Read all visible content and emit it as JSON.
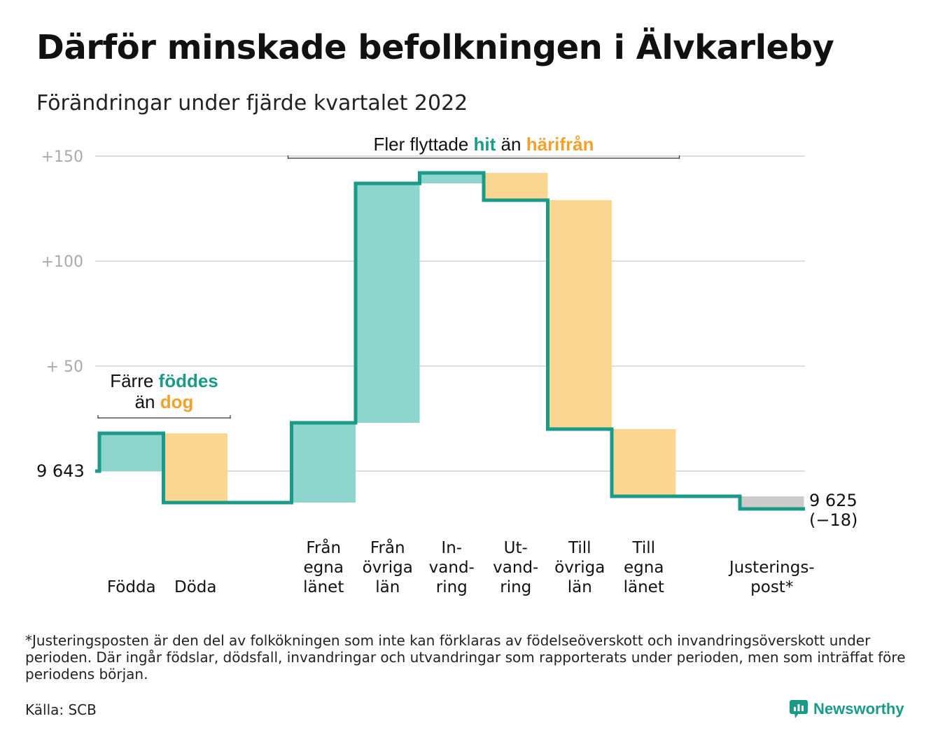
{
  "title": "Därför minskade befolkningen i Älvkarleby",
  "subtitle": "Förändringar under fjärde kvartalet 2022",
  "chart_data": {
    "type": "waterfall",
    "ylim": [
      -35,
      160
    ],
    "y_ticks": [
      {
        "value": 150,
        "label": "+150"
      },
      {
        "value": 100,
        "label": "+100"
      },
      {
        "value": 50,
        "label": "+ 50"
      }
    ],
    "grid": true,
    "start": {
      "value": 0,
      "label": "9 643"
    },
    "steps": [
      {
        "label": [
          "Födda"
        ],
        "value": 18,
        "kind": "in"
      },
      {
        "label": [
          "Döda"
        ],
        "value": -33,
        "kind": "out"
      },
      {
        "label": [],
        "value": 0,
        "kind": "none"
      },
      {
        "label": [
          "Från",
          "egna",
          "länet"
        ],
        "value": 38,
        "kind": "in"
      },
      {
        "label": [
          "Från",
          "övriga",
          "län"
        ],
        "value": 114,
        "kind": "in"
      },
      {
        "label": [
          "In-",
          "vand-",
          "ring"
        ],
        "value": 5,
        "kind": "in"
      },
      {
        "label": [
          "Ut-",
          "vand-",
          "ring"
        ],
        "value": -13,
        "kind": "out"
      },
      {
        "label": [
          "Till",
          "övriga",
          "län"
        ],
        "value": -109,
        "kind": "out"
      },
      {
        "label": [
          "Till",
          "egna",
          "länet"
        ],
        "value": -32,
        "kind": "out"
      },
      {
        "label": [],
        "value": 0,
        "kind": "none"
      },
      {
        "label": [
          "Justerings-",
          "post*"
        ],
        "value": -6,
        "kind": "adj"
      }
    ],
    "end": {
      "label": "9 625",
      "change": "(−18)"
    },
    "annotations": [
      {
        "parts": [
          {
            "text": "Färre ",
            "role": "plain"
          },
          {
            "text": "föddes",
            "role": "in"
          }
        ],
        "parts2": [
          {
            "text": "än ",
            "role": "plain"
          },
          {
            "text": "dog",
            "role": "out"
          }
        ],
        "span": [
          0,
          1
        ]
      },
      {
        "parts": [
          {
            "text": "Fler flyttade ",
            "role": "plain"
          },
          {
            "text": "hit",
            "role": "in"
          },
          {
            "text": " än ",
            "role": "plain"
          },
          {
            "text": "härifrån",
            "role": "out"
          }
        ],
        "span": [
          3,
          8
        ]
      }
    ],
    "colors": {
      "line": "#1a9a88",
      "in": "#8ed6cd",
      "out": "#fbd690",
      "adj": "#cccccc",
      "in_text": "#1a9a88",
      "out_text": "#f2a22a",
      "grid": "#dddddd",
      "tick": "#aaaaaa"
    }
  },
  "footnote": "*Justeringsposten är den del av folkökningen som inte kan förklaras av födelseöverskott och invandringsöverskott under perioden. Där ingår födslar, dödsfall, invandringar och utvandringar som rapporterats under perioden, men som inträffat före periodens början.",
  "source": "Källa: SCB",
  "brand": "Newsworthy",
  "brand_color": "#1a9a88"
}
